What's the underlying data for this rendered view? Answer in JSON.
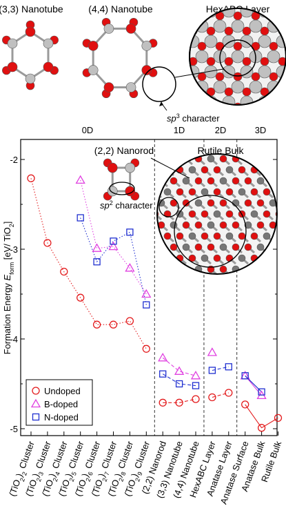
{
  "panel_titles": {
    "nt33": "(3,3) Nanotube",
    "nt44": "(4,4) Nanotube",
    "hex": "HexABC Layer",
    "sp3": "sp",
    "sp3_sup": "3",
    "sp3_word": " character",
    "nanorod": "(2,2) Nanorod",
    "rutile": "Rutile Bulk",
    "sp2": "sp",
    "sp2_sup": "2",
    "sp2_word": " character"
  },
  "colors": {
    "undoped": "#e31a1c",
    "bdoped": "#e040e0",
    "ndoped": "#1f2fd0",
    "oxygen": "#e01010",
    "titanium": "#c0c0c0"
  },
  "chart_data": {
    "type": "scatter",
    "title": "",
    "ylabel_main": "Formation Energy ",
    "ylabel_sym": "E",
    "ylabel_sub": "form",
    "ylabel_unit": " [eV/ TiO",
    "ylabel_unit_sub": "2",
    "ylabel_end": "]",
    "ylim": [
      -5,
      -2
    ],
    "yticks": [
      "-2",
      "-3",
      "-4",
      "-5"
    ],
    "ytick_values": [
      -2,
      -3,
      -4,
      -5
    ],
    "dimension_labels": [
      "0D",
      "1D",
      "2D",
      "3D"
    ],
    "categories": [
      {
        "pre": "(TiO",
        "sub": "2",
        "post": ")",
        "n": "2",
        "tail": " Cluster"
      },
      {
        "pre": "(TiO",
        "sub": "2",
        "post": ")",
        "n": "3",
        "tail": " Cluster"
      },
      {
        "pre": "(TiO",
        "sub": "2",
        "post": ")",
        "n": "4",
        "tail": " Cluster"
      },
      {
        "pre": "(TiO",
        "sub": "2",
        "post": ")",
        "n": "5",
        "tail": " Cluster"
      },
      {
        "pre": "(TiO",
        "sub": "2",
        "post": ")",
        "n": "6",
        "tail": " Cluster"
      },
      {
        "pre": "(TiO",
        "sub": "2",
        "post": ")",
        "n": "7",
        "tail": " Cluster"
      },
      {
        "pre": "(TiO",
        "sub": "2",
        "post": ")",
        "n": "8",
        "tail": " Cluster"
      },
      {
        "pre": "(TiO",
        "sub": "2",
        "post": ")",
        "n": "9",
        "tail": " Cluster"
      },
      {
        "pre": "(2,2) Nanorod",
        "sub": "",
        "post": "",
        "n": "",
        "tail": ""
      },
      {
        "pre": "(3,3) Nanotube",
        "sub": "",
        "post": "",
        "n": "",
        "tail": ""
      },
      {
        "pre": "(4,4) Nanotube",
        "sub": "",
        "post": "",
        "n": "",
        "tail": ""
      },
      {
        "pre": "HexABC Layer",
        "sub": "",
        "post": "",
        "n": "",
        "tail": ""
      },
      {
        "pre": "Anatase Layer",
        "sub": "",
        "post": "",
        "n": "",
        "tail": ""
      },
      {
        "pre": "Anatase Surface",
        "sub": "",
        "post": "",
        "n": "",
        "tail": ""
      },
      {
        "pre": "Anatase Bulk",
        "sub": "",
        "post": "",
        "n": "",
        "tail": ""
      },
      {
        "pre": "Rutile Bulk",
        "sub": "",
        "post": "",
        "n": "",
        "tail": ""
      }
    ],
    "series": [
      {
        "name": "Undoped",
        "marker": "circle",
        "color": "#e31a1c",
        "groups": [
          {
            "style": "dotted",
            "points": [
              [
                0,
                -2.21
              ],
              [
                1,
                -2.93
              ],
              [
                2,
                -3.25
              ],
              [
                3,
                -3.54
              ],
              [
                4,
                -3.84
              ],
              [
                5,
                -3.84
              ],
              [
                6,
                -3.8
              ],
              [
                7,
                -4.11
              ]
            ]
          },
          {
            "style": "dashed",
            "points": [
              [
                8,
                -4.71
              ],
              [
                9,
                -4.71
              ],
              [
                10,
                -4.67
              ]
            ]
          },
          {
            "style": "dashed",
            "points": [
              [
                11,
                -4.65
              ],
              [
                12,
                -4.6
              ]
            ]
          },
          {
            "style": "solid",
            "points": [
              [
                13,
                -4.73
              ],
              [
                14,
                -4.99
              ],
              [
                15,
                -4.88
              ]
            ]
          }
        ]
      },
      {
        "name": "B-doped",
        "marker": "triangle",
        "color": "#e040e0",
        "groups": [
          {
            "style": "dotted",
            "points": [
              [
                3,
                -2.23
              ],
              [
                4,
                -2.99
              ],
              [
                5,
                -2.97
              ],
              [
                6,
                -3.21
              ],
              [
                7,
                -3.5
              ]
            ]
          },
          {
            "style": "dashed",
            "points": [
              [
                8,
                -4.21
              ],
              [
                9,
                -4.36
              ],
              [
                10,
                -4.41
              ]
            ]
          },
          {
            "style": "single",
            "points": [
              [
                11,
                -4.15
              ]
            ]
          },
          {
            "style": "solid",
            "points": [
              [
                13,
                -4.41
              ],
              [
                14,
                -4.63
              ]
            ]
          }
        ]
      },
      {
        "name": "N-doped",
        "marker": "square",
        "color": "#1f2fd0",
        "groups": [
          {
            "style": "dotted",
            "points": [
              [
                3,
                -2.65
              ],
              [
                4,
                -3.14
              ],
              [
                5,
                -2.91
              ],
              [
                6,
                -2.81
              ],
              [
                7,
                -3.62
              ]
            ]
          },
          {
            "style": "dashed",
            "points": [
              [
                8,
                -4.39
              ],
              [
                9,
                -4.5
              ],
              [
                10,
                -4.52
              ]
            ]
          },
          {
            "style": "dashed",
            "points": [
              [
                11,
                -4.35
              ],
              [
                12,
                -4.31
              ]
            ]
          },
          {
            "style": "solid",
            "points": [
              [
                13,
                -4.41
              ],
              [
                14,
                -4.59
              ]
            ]
          }
        ]
      }
    ],
    "legend": {
      "placement": "bottom-left",
      "entries": [
        "Undoped",
        "B-doped",
        "N-doped"
      ]
    },
    "grid": false
  }
}
